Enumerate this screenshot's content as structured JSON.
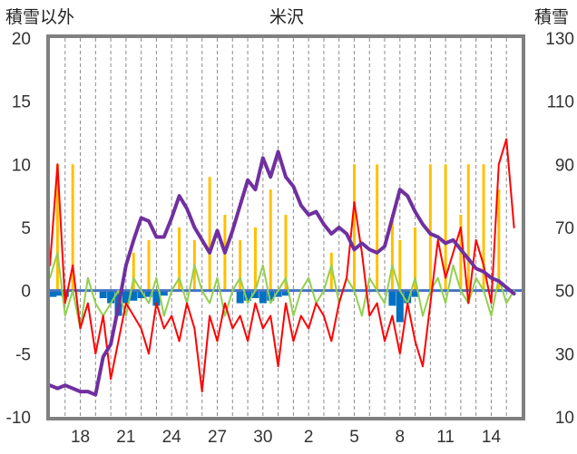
{
  "chart_data": {
    "type": "line",
    "title": "米沢",
    "left_axis_label": "積雪以外",
    "right_axis_label": "積雪",
    "left_ylim": [
      -10,
      20
    ],
    "right_ylim": [
      10,
      130
    ],
    "left_ticks": [
      20,
      15,
      10,
      5,
      0,
      -5,
      -10
    ],
    "right_ticks": [
      130,
      110,
      90,
      70,
      50,
      30,
      10
    ],
    "x_ticks": [
      "18",
      "21",
      "24",
      "27",
      "30",
      "2",
      "5",
      "8",
      "11",
      "14"
    ],
    "x_tick_positions": [
      2,
      5,
      8,
      11,
      14,
      17,
      20,
      23,
      26,
      29
    ],
    "xlim": [
      0,
      31
    ],
    "grid": "vertical dashed lines daily",
    "colors": {
      "snow_depth": "#7030A0",
      "precip_yellow": "#FFC000",
      "precip_blue": "#0070C0",
      "temp_red": "#FF0000",
      "temp_green": "#92D050",
      "zero_line": "#4472C4",
      "frame": "#808080"
    },
    "snow_depth": {
      "x": [
        0,
        0.5,
        1,
        1.5,
        2,
        2.5,
        3,
        3.5,
        4,
        4.5,
        5,
        5.5,
        6,
        6.5,
        7,
        7.5,
        8,
        8.5,
        9,
        9.5,
        10,
        10.5,
        11,
        11.5,
        12,
        12.5,
        13,
        13.5,
        14,
        14.5,
        15,
        15.5,
        16,
        16.5,
        17,
        17.5,
        18,
        18.5,
        19,
        19.5,
        20,
        20.5,
        21,
        21.5,
        22,
        22.5,
        23,
        23.5,
        24,
        24.5,
        25,
        25.5,
        26,
        26.5,
        27,
        27.5,
        28,
        28.5,
        29,
        29.5,
        30,
        30.5
      ],
      "values": [
        20,
        19,
        20,
        19,
        18,
        18,
        17,
        29,
        33,
        45,
        58,
        66,
        73,
        72,
        67,
        67,
        73,
        80,
        76,
        70,
        66,
        62,
        69,
        62,
        69,
        77,
        85,
        82,
        92,
        86,
        94,
        86,
        83,
        77,
        74,
        75,
        71,
        68,
        70,
        68,
        63,
        65,
        63,
        62,
        64,
        73,
        82,
        80,
        75,
        71,
        68,
        67,
        65,
        66,
        63,
        60,
        57,
        56,
        54,
        53,
        51,
        49
      ]
    },
    "temp_red": {
      "x": [
        0,
        0.5,
        1,
        1.5,
        2,
        2.5,
        3,
        3.5,
        4,
        4.5,
        5,
        5.5,
        6,
        6.5,
        7,
        7.5,
        8,
        8.5,
        9,
        9.5,
        10,
        10.5,
        11,
        11.5,
        12,
        12.5,
        13,
        13.5,
        14,
        14.5,
        15,
        15.5,
        16,
        16.5,
        17,
        17.5,
        18,
        18.5,
        19,
        19.5,
        20,
        20.5,
        21,
        21.5,
        22,
        22.5,
        23,
        23.5,
        24,
        24.5,
        25,
        25.5,
        26,
        26.5,
        27,
        27.5,
        28,
        28.5,
        29,
        29.5,
        30,
        30.5
      ],
      "values": [
        2,
        10,
        -1,
        2,
        -3,
        -1,
        -5,
        -2,
        -7,
        -4,
        -1,
        -2,
        -3,
        -5,
        -1,
        -3,
        -2,
        -4,
        -1,
        -3,
        -8,
        -2,
        -4,
        -1,
        -3,
        -2,
        -4,
        -1,
        -3,
        -2,
        -6,
        -1,
        -4,
        -2,
        -3,
        -1,
        -2,
        -4,
        -1,
        1,
        7,
        3,
        -2,
        -1,
        -4,
        -2,
        -5,
        -1,
        -4,
        -6,
        -1,
        4,
        1,
        3,
        5,
        -1,
        4,
        2,
        -1,
        10,
        12,
        5
      ]
    },
    "temp_green": {
      "x": [
        0,
        0.5,
        1,
        1.5,
        2,
        2.5,
        3,
        3.5,
        4,
        4.5,
        5,
        5.5,
        6,
        6.5,
        7,
        7.5,
        8,
        8.5,
        9,
        9.5,
        10,
        10.5,
        11,
        11.5,
        12,
        12.5,
        13,
        13.5,
        14,
        14.5,
        15,
        15.5,
        16,
        16.5,
        17,
        17.5,
        18,
        18.5,
        19,
        19.5,
        20,
        20.5,
        21,
        21.5,
        22,
        22.5,
        23,
        23.5,
        24,
        24.5,
        25,
        25.5,
        26,
        26.5,
        27,
        27.5,
        28,
        28.5,
        29,
        29.5,
        30,
        30.5
      ],
      "values": [
        1,
        3,
        -2,
        0,
        -3,
        1,
        -1,
        -2,
        -1,
        0,
        -2,
        1,
        0,
        -1,
        1,
        -2,
        0,
        1,
        -1,
        2,
        0,
        -1,
        1,
        -2,
        0,
        1,
        -1,
        0,
        2,
        -1,
        0,
        1,
        -2,
        0,
        1,
        -1,
        0,
        2,
        -1,
        1,
        0,
        -2,
        1,
        0,
        -1,
        2,
        0,
        -1,
        1,
        -2,
        0,
        1,
        -1,
        2,
        0,
        -1,
        1,
        0,
        -2,
        1,
        -1,
        0
      ]
    },
    "precip_yellow": {
      "x": [
        0.5,
        1.5,
        5.5,
        6.5,
        8.5,
        9.5,
        10.5,
        11.5,
        12.5,
        13.5,
        14.5,
        15.5,
        18.5,
        20,
        21.5,
        22.5,
        23,
        24,
        25,
        26,
        27,
        27.5,
        28.5,
        29.5
      ],
      "values": [
        10,
        10,
        3,
        4,
        5,
        4,
        9,
        6,
        4,
        5,
        8,
        6,
        3,
        10,
        10,
        6,
        4,
        5,
        10,
        10,
        6,
        10,
        10,
        8
      ]
    },
    "precip_blue": {
      "x": [
        0.2,
        0.6,
        1.0,
        3.5,
        4.0,
        4.5,
        5.0,
        5.5,
        6.0,
        6.5,
        7.0,
        7.5,
        12.5,
        13.0,
        13.5,
        14.0,
        14.5,
        15.0,
        15.5,
        22.5,
        23.0,
        23.5,
        24.0
      ],
      "values": [
        -0.5,
        -0.4,
        -0.5,
        -0.6,
        -1.0,
        -2.0,
        -1.0,
        -0.8,
        -0.6,
        -0.5,
        -1.2,
        -0.4,
        -1.0,
        -0.8,
        -0.6,
        -1.0,
        -0.8,
        -0.5,
        -0.4,
        -1.2,
        -2.5,
        -1.0,
        -0.5
      ]
    }
  }
}
